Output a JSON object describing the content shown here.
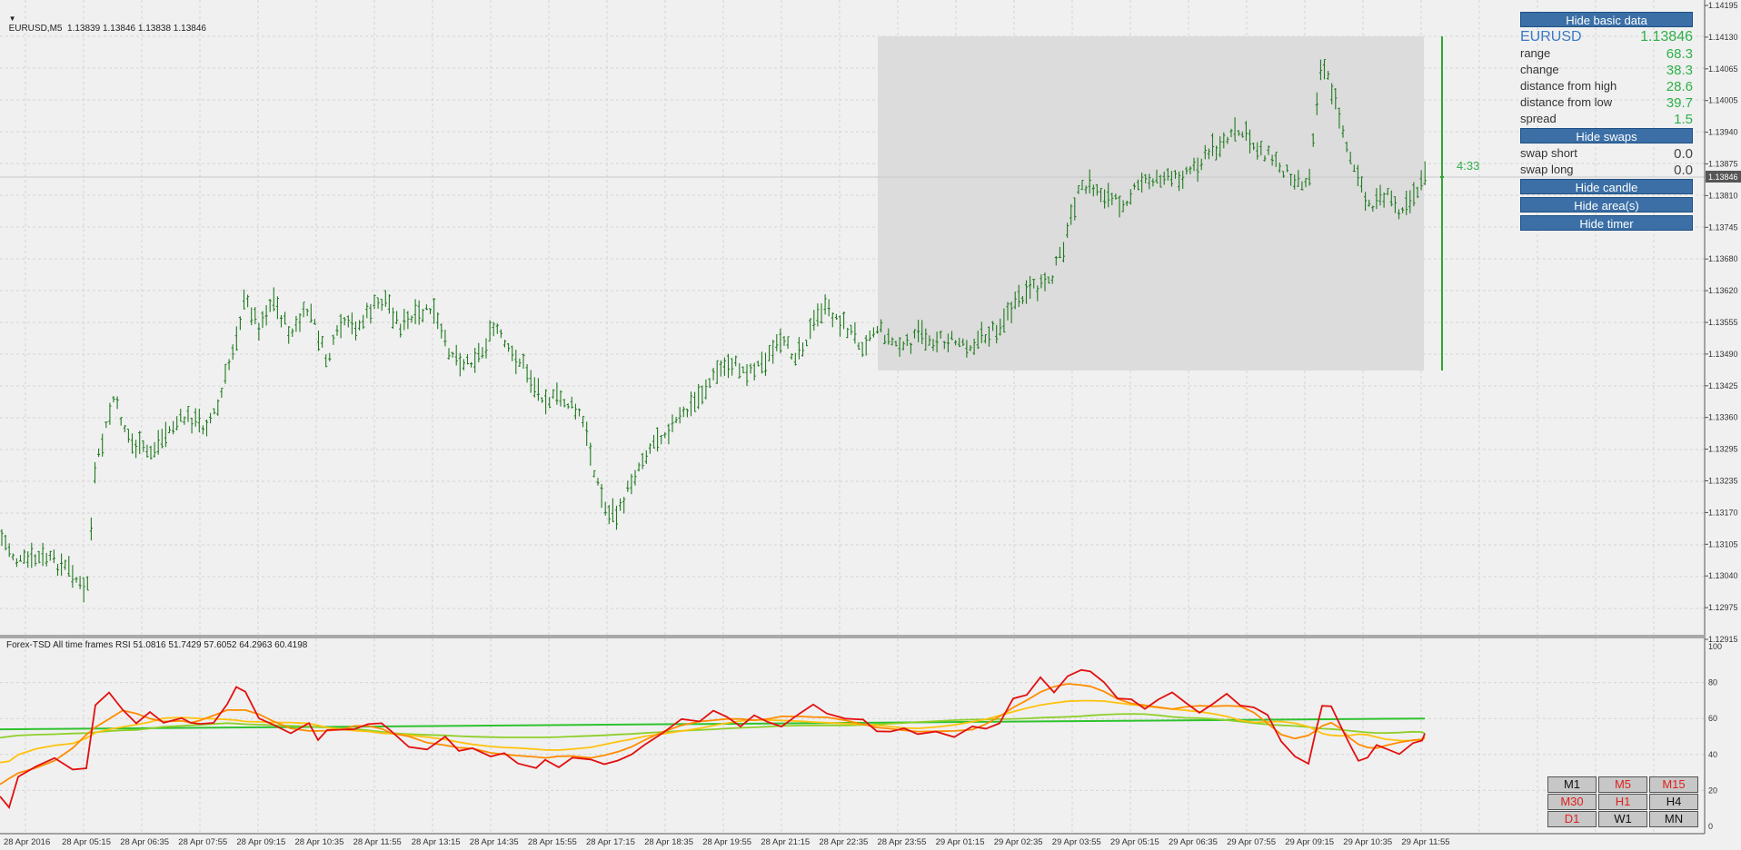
{
  "chart": {
    "header": "EURUSD,M5  1.13839 1.13846 1.13838 1.13846",
    "price_labels": [
      "1.14195",
      "1.14130",
      "1.14065",
      "1.14005",
      "1.13940",
      "1.13875",
      "1.13810",
      "1.13745",
      "1.13680",
      "1.13620",
      "1.13555",
      "1.13490",
      "1.13425",
      "1.13360",
      "1.13295",
      "1.13235",
      "1.13170",
      "1.13105",
      "1.13040",
      "1.12975",
      "1.12915"
    ],
    "current_price_tag": "1.13846",
    "timer_label": "4:33",
    "time_labels": [
      "28 Apr 2016",
      "28 Apr 05:15",
      "28 Apr 06:35",
      "28 Apr 07:55",
      "28 Apr 09:15",
      "28 Apr 10:35",
      "28 Apr 11:55",
      "28 Apr 13:15",
      "28 Apr 14:35",
      "28 Apr 15:55",
      "28 Apr 17:15",
      "28 Apr 18:35",
      "28 Apr 19:55",
      "28 Apr 21:15",
      "28 Apr 22:35",
      "28 Apr 23:55",
      "29 Apr 01:15",
      "29 Apr 02:35",
      "29 Apr 03:55",
      "29 Apr 05:15",
      "29 Apr 06:35",
      "29 Apr 07:55",
      "29 Apr 09:15",
      "29 Apr 10:35",
      "29 Apr 11:55"
    ],
    "colors": {
      "candle": "#1f7a1f",
      "area": "#dcdcdc",
      "rsi_red": "#e21010",
      "rsi_orange": "#ff8c00",
      "rsi_yellow": "#ffc20e",
      "rsi_lime": "#8fcf2a",
      "rsi_green": "#2ec22e"
    }
  },
  "panel": {
    "hide_basic": "Hide basic data",
    "symbol": "EURUSD",
    "price": "1.13846",
    "rows": [
      {
        "k": "range",
        "v": "68.3"
      },
      {
        "k": "change",
        "v": "38.3"
      },
      {
        "k": "distance from high",
        "v": "28.6"
      },
      {
        "k": "distance from low",
        "v": "39.7"
      },
      {
        "k": "spread",
        "v": "1.5"
      }
    ],
    "hide_swaps": "Hide swaps",
    "swaps": [
      {
        "k": "swap short",
        "v": "0.0"
      },
      {
        "k": "swap long",
        "v": "0.0"
      }
    ],
    "hide_candle": "Hide candle",
    "hide_areas": "Hide area(s)",
    "hide_timer": "Hide timer"
  },
  "rsi": {
    "header": "Forex-TSD All time frames RSI 51.0816 51.7429 57.6052 64.2963 60.4198",
    "levels": [
      "100",
      "80",
      "60",
      "40",
      "20",
      "0"
    ]
  },
  "timeframes": [
    {
      "label": "M1",
      "color": "black"
    },
    {
      "label": "M5",
      "color": "red"
    },
    {
      "label": "M15",
      "color": "red"
    },
    {
      "label": "M30",
      "color": "red"
    },
    {
      "label": "H1",
      "color": "red"
    },
    {
      "label": "H4",
      "color": "black"
    },
    {
      "label": "D1",
      "color": "red"
    },
    {
      "label": "W1",
      "color": "black"
    },
    {
      "label": "MN",
      "color": "black"
    }
  ]
}
